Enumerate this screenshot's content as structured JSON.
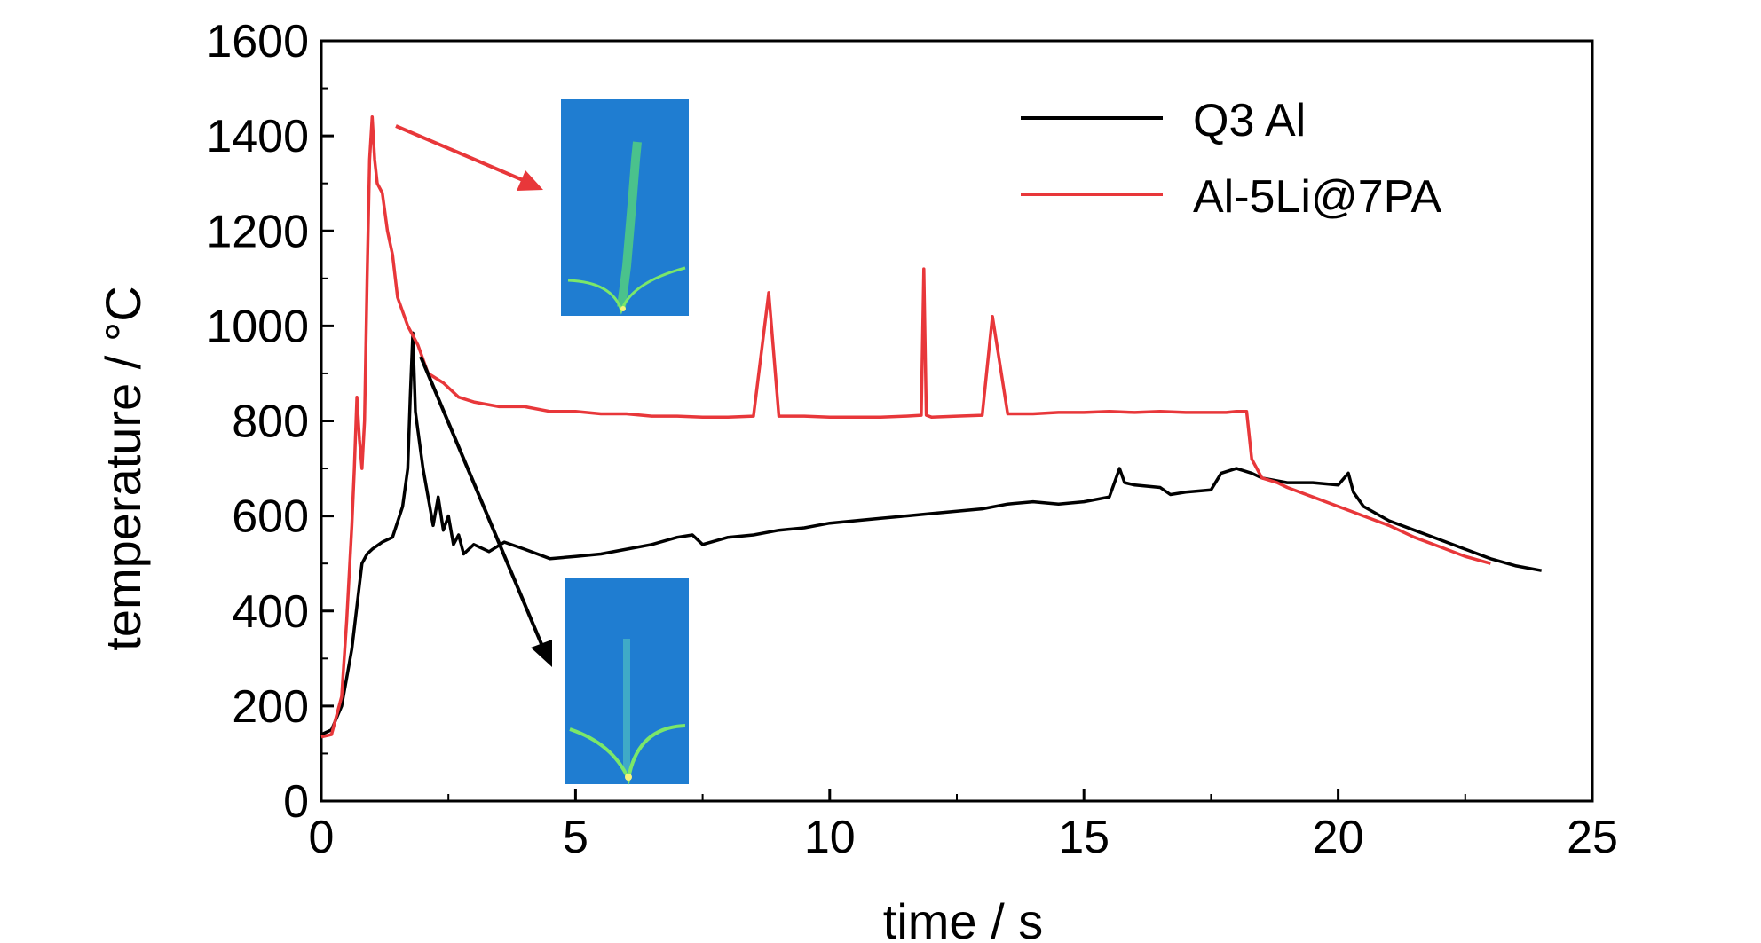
{
  "chart_data": {
    "type": "line",
    "title": "",
    "xlabel": "time / s",
    "ylabel": "temperature / °C",
    "xlim": [
      0,
      25
    ],
    "ylim": [
      0,
      1600
    ],
    "xticks": [
      0,
      5,
      10,
      15,
      20,
      25
    ],
    "yticks": [
      0,
      200,
      400,
      600,
      800,
      1000,
      1200,
      1400,
      1600
    ],
    "grid": false,
    "legend_position": "top-right",
    "series": [
      {
        "name": "Q3 Al",
        "color": "#000000",
        "x": [
          0,
          0.2,
          0.4,
          0.6,
          0.8,
          0.9,
          1.0,
          1.2,
          1.4,
          1.6,
          1.7,
          1.75,
          1.8,
          1.85,
          1.9,
          2.0,
          2.1,
          2.2,
          2.3,
          2.4,
          2.5,
          2.6,
          2.7,
          2.8,
          3.0,
          3.3,
          3.6,
          4.0,
          4.5,
          5.0,
          5.5,
          6.0,
          6.5,
          7.0,
          7.3,
          7.5,
          8.0,
          8.5,
          9.0,
          9.5,
          10.0,
          10.5,
          11.0,
          11.5,
          12.0,
          12.5,
          13.0,
          13.5,
          14.0,
          14.5,
          15.0,
          15.5,
          15.7,
          15.8,
          16.0,
          16.5,
          16.7,
          17.0,
          17.5,
          17.7,
          18.0,
          18.3,
          18.5,
          19.0,
          19.5,
          20.0,
          20.2,
          20.3,
          20.5,
          21.0,
          21.5,
          22.0,
          22.5,
          23.0,
          23.5,
          24.0
        ],
        "y": [
          140,
          150,
          200,
          320,
          500,
          520,
          530,
          545,
          555,
          620,
          700,
          850,
          985,
          820,
          780,
          700,
          640,
          580,
          640,
          570,
          600,
          540,
          560,
          520,
          540,
          525,
          545,
          530,
          510,
          515,
          520,
          530,
          540,
          555,
          560,
          540,
          555,
          560,
          570,
          575,
          585,
          590,
          595,
          600,
          605,
          610,
          615,
          625,
          630,
          625,
          630,
          640,
          700,
          670,
          665,
          660,
          645,
          650,
          655,
          690,
          700,
          690,
          680,
          670,
          670,
          665,
          690,
          650,
          620,
          590,
          570,
          550,
          530,
          510,
          495,
          485
        ]
      },
      {
        "name": "Al-5Li@7PA",
        "color": "#e8373a",
        "x": [
          0,
          0.2,
          0.4,
          0.5,
          0.6,
          0.65,
          0.7,
          0.75,
          0.8,
          0.85,
          0.9,
          0.95,
          1.0,
          1.05,
          1.1,
          1.2,
          1.3,
          1.4,
          1.5,
          1.7,
          1.9,
          2.1,
          2.4,
          2.7,
          3.0,
          3.5,
          4.0,
          4.5,
          5.0,
          5.5,
          6.0,
          6.5,
          7.0,
          7.5,
          8.0,
          8.5,
          8.8,
          9.0,
          9.5,
          10.0,
          10.5,
          11.0,
          11.5,
          11.8,
          11.85,
          11.9,
          12.0,
          12.5,
          13.0,
          13.2,
          13.5,
          14.0,
          14.5,
          15.0,
          15.5,
          16.0,
          16.5,
          17.0,
          17.5,
          17.8,
          18.0,
          18.2,
          18.3,
          18.5,
          18.8,
          19.0,
          19.5,
          20.0,
          20.5,
          21.0,
          21.5,
          22.0,
          22.5,
          23.0
        ],
        "y": [
          135,
          140,
          220,
          380,
          580,
          700,
          850,
          760,
          700,
          800,
          1100,
          1350,
          1440,
          1350,
          1300,
          1280,
          1200,
          1150,
          1060,
          1000,
          960,
          900,
          880,
          850,
          840,
          830,
          830,
          820,
          820,
          815,
          815,
          810,
          810,
          808,
          808,
          810,
          1070,
          810,
          810,
          808,
          808,
          808,
          810,
          812,
          1120,
          812,
          808,
          810,
          812,
          1020,
          815,
          815,
          818,
          818,
          820,
          818,
          820,
          818,
          818,
          818,
          820,
          820,
          720,
          680,
          670,
          660,
          640,
          620,
          600,
          580,
          555,
          535,
          515,
          500
        ]
      }
    ]
  }
}
